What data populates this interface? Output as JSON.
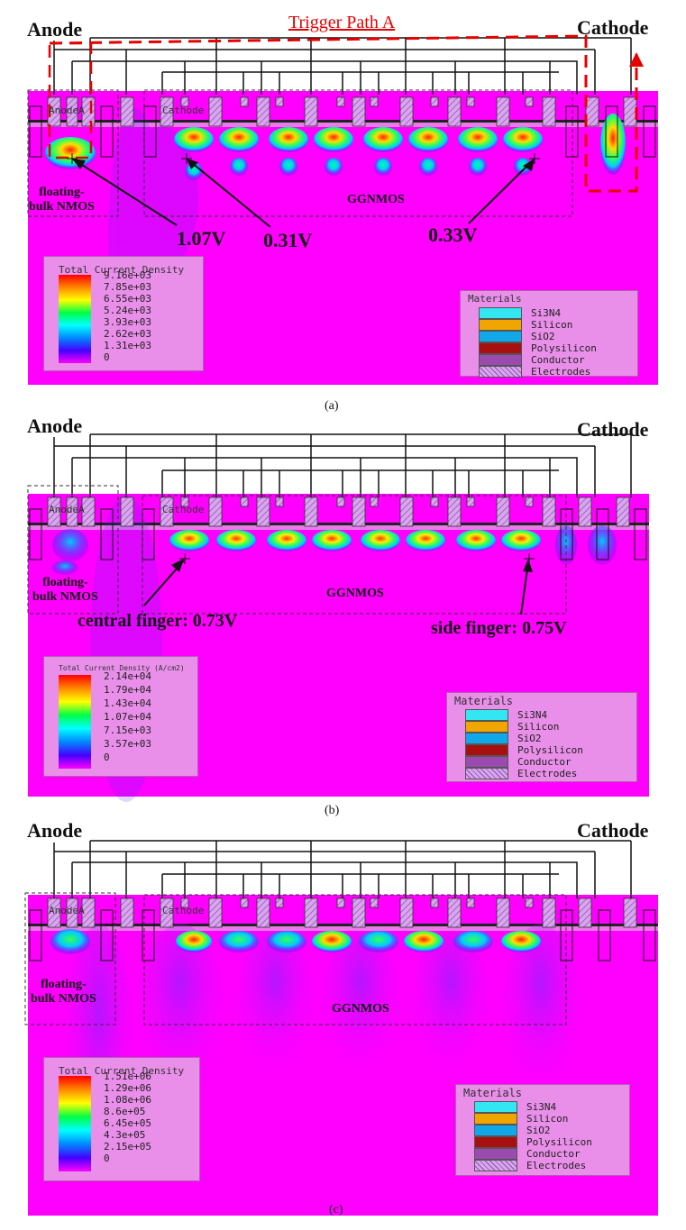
{
  "panels": [
    {
      "id": "a",
      "caption": "(a)",
      "anode": "Anode",
      "cathode": "Cathode",
      "trigger_path": "Trigger Path A",
      "device_labels": {
        "anode_small": "AnodeA",
        "cathode_small": "Cathode",
        "floating": "floating-\nbulk NMOS",
        "ggnmos": "GGNMOS"
      },
      "annotations": [
        "1.07V",
        "0.31V",
        "0.33V"
      ],
      "legend_title": "Total Current Density",
      "legend_values": [
        "9.16e+03",
        "7.85e+03",
        "6.55e+03",
        "5.24e+03",
        "3.93e+03",
        "2.62e+03",
        "1.31e+03",
        "0"
      ]
    },
    {
      "id": "b",
      "caption": "(b)",
      "anode": "Anode",
      "cathode": "Cathode",
      "device_labels": {
        "anode_small": "AnodeA",
        "cathode_small": "Cathode",
        "floating": "floating-\nbulk NMOS",
        "ggnmos": "GGNMOS"
      },
      "annotations": [
        "central finger: 0.73V",
        "side finger:  0.75V"
      ],
      "legend_title": "Total Current Density (A/cm2)",
      "legend_values": [
        "2.14e+04",
        "1.79e+04",
        "1.43e+04",
        "1.07e+04",
        "7.15e+03",
        "3.57e+03",
        "0"
      ]
    },
    {
      "id": "c",
      "caption": "(c)",
      "anode": "Anode",
      "cathode": "Cathode",
      "device_labels": {
        "anode_small": "AnodeA",
        "cathode_small": "Cathode",
        "floating": "floating-\nbulk NMOS",
        "ggnmos": "GGNMOS"
      },
      "annotations": [],
      "legend_title": "Total Current Density",
      "legend_values": [
        "1.51e+06",
        "1.29e+06",
        "1.08e+06",
        "8.6e+05",
        "6.45e+05",
        "4.3e+05",
        "2.15e+05",
        "0"
      ]
    }
  ],
  "materials": {
    "title": "Materials",
    "items": [
      {
        "name": "Si3N4",
        "color": "#33e6f2"
      },
      {
        "name": "Silicon",
        "color": "#f0a500"
      },
      {
        "name": "SiO2",
        "color": "#10a8e8"
      },
      {
        "name": "Polysilicon",
        "color": "#a81010"
      },
      {
        "name": "Conductor",
        "color": "#9b4bb0"
      },
      {
        "name": "Electrodes",
        "color": "#d9b8ec"
      }
    ]
  },
  "colors": {
    "substrate": "#ff00ff",
    "trigger": "#e60000"
  }
}
